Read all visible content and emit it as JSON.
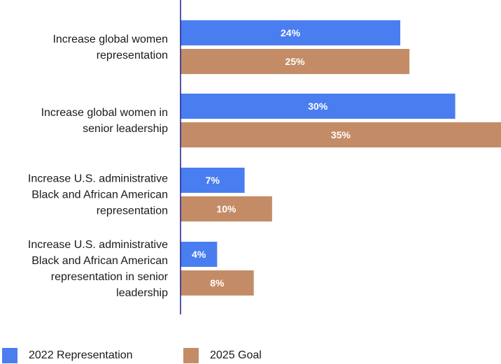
{
  "chart_data": {
    "type": "bar",
    "orientation": "horizontal",
    "categories": [
      [
        "Increase global women",
        "representation"
      ],
      [
        "Increase global women in",
        "senior leadership"
      ],
      [
        "Increase U.S. administrative",
        "Black and African American",
        "representation"
      ],
      [
        "Increase U.S. administrative",
        "Black and African American",
        "representation in senior",
        "leadership"
      ]
    ],
    "series": [
      {
        "name": "2022 Representation",
        "color": "#4a7ef0",
        "values": [
          24,
          30,
          7,
          4
        ],
        "labels": [
          "24%",
          "30%",
          "7%",
          "4%"
        ]
      },
      {
        "name": "2025 Goal",
        "color": "#c48c66",
        "values": [
          25,
          35,
          10,
          8
        ],
        "labels": [
          "25%",
          "35%",
          "10%",
          "8%"
        ]
      }
    ],
    "xlim": [
      0,
      35
    ],
    "legend_position": "bottom",
    "axis_color": "#1a1f8c"
  }
}
